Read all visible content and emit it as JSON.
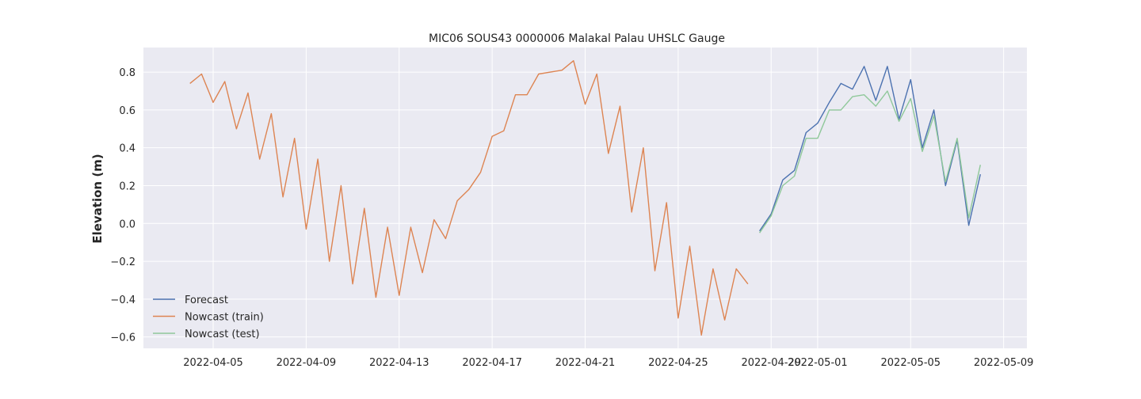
{
  "chart_data": {
    "type": "line",
    "title": "MIC06 SOUS43 0000006 Malakal Palau UHSLC Gauge",
    "xlabel": "",
    "ylabel": "Elevation (m)",
    "xlim": [
      "2022-04-02",
      "2022-05-10"
    ],
    "ylim": [
      -0.66,
      0.93
    ],
    "x_ticks": [
      "2022-04-05",
      "2022-04-09",
      "2022-04-13",
      "2022-04-17",
      "2022-04-21",
      "2022-04-25",
      "2022-04-29",
      "2022-05-01",
      "2022-05-05",
      "2022-05-09"
    ],
    "y_ticks": [
      -0.6,
      -0.4,
      -0.2,
      0.0,
      0.2,
      0.4,
      0.6,
      0.8
    ],
    "y_tick_labels": [
      "−0.6",
      "−0.4",
      "−0.2",
      "0.0",
      "0.2",
      "0.4",
      "0.6",
      "0.8"
    ],
    "grid": true,
    "background": "#eaeaf2",
    "legend_position": "lower-left",
    "series": [
      {
        "name": "Forecast",
        "color": "#4c72b0",
        "x": [
          "2022-04-28 12:00",
          "2022-04-29 00:00",
          "2022-04-29 12:00",
          "2022-04-30 00:00",
          "2022-04-30 12:00",
          "2022-05-01 00:00",
          "2022-05-01 12:00",
          "2022-05-02 00:00",
          "2022-05-02 12:00",
          "2022-05-03 00:00",
          "2022-05-03 12:00",
          "2022-05-04 00:00",
          "2022-05-04 12:00",
          "2022-05-05 00:00",
          "2022-05-05 12:00",
          "2022-05-06 00:00",
          "2022-05-06 12:00",
          "2022-05-07 00:00",
          "2022-05-07 12:00",
          "2022-05-08 00:00"
        ],
        "y": [
          -0.04,
          0.05,
          0.23,
          0.28,
          0.48,
          0.53,
          0.64,
          0.74,
          0.71,
          0.83,
          0.65,
          0.83,
          0.55,
          0.76,
          0.4,
          0.6,
          0.2,
          0.44,
          -0.01,
          0.26
        ]
      },
      {
        "name": "Nowcast (train)",
        "color": "#dd8452",
        "x": [
          "2022-04-04 00:00",
          "2022-04-04 12:00",
          "2022-04-05 00:00",
          "2022-04-05 12:00",
          "2022-04-06 00:00",
          "2022-04-06 12:00",
          "2022-04-07 00:00",
          "2022-04-07 12:00",
          "2022-04-08 00:00",
          "2022-04-08 12:00",
          "2022-04-09 00:00",
          "2022-04-09 12:00",
          "2022-04-10 00:00",
          "2022-04-10 12:00",
          "2022-04-11 00:00",
          "2022-04-11 12:00",
          "2022-04-12 00:00",
          "2022-04-12 12:00",
          "2022-04-13 00:00",
          "2022-04-13 12:00",
          "2022-04-14 00:00",
          "2022-04-14 12:00",
          "2022-04-15 00:00",
          "2022-04-15 12:00",
          "2022-04-16 00:00",
          "2022-04-16 12:00",
          "2022-04-17 00:00",
          "2022-04-17 12:00",
          "2022-04-18 00:00",
          "2022-04-18 12:00",
          "2022-04-19 00:00",
          "2022-04-19 12:00",
          "2022-04-20 00:00",
          "2022-04-20 12:00",
          "2022-04-21 00:00",
          "2022-04-21 12:00",
          "2022-04-22 00:00",
          "2022-04-22 12:00",
          "2022-04-23 00:00",
          "2022-04-23 12:00",
          "2022-04-24 00:00",
          "2022-04-24 12:00",
          "2022-04-25 00:00",
          "2022-04-25 12:00",
          "2022-04-26 00:00",
          "2022-04-26 12:00",
          "2022-04-27 00:00",
          "2022-04-27 12:00",
          "2022-04-28 00:00"
        ],
        "y": [
          0.74,
          0.79,
          0.64,
          0.75,
          0.5,
          0.69,
          0.34,
          0.58,
          0.14,
          0.45,
          -0.03,
          0.34,
          -0.2,
          0.2,
          -0.32,
          0.08,
          -0.39,
          -0.02,
          -0.38,
          -0.02,
          -0.26,
          0.02,
          -0.08,
          0.12,
          0.18,
          0.27,
          0.46,
          0.49,
          0.68,
          0.68,
          0.79,
          0.8,
          0.81,
          0.86,
          0.63,
          0.79,
          0.37,
          0.62,
          0.06,
          0.4,
          -0.25,
          0.11,
          -0.5,
          -0.12,
          -0.59,
          -0.24,
          -0.51,
          -0.24,
          -0.32
        ]
      },
      {
        "name": "Nowcast (test)",
        "color": "#8fc89a",
        "x": [
          "2022-04-28 12:00",
          "2022-04-29 00:00",
          "2022-04-29 12:00",
          "2022-04-30 00:00",
          "2022-04-30 12:00",
          "2022-05-01 00:00",
          "2022-05-01 12:00",
          "2022-05-02 00:00",
          "2022-05-02 12:00",
          "2022-05-03 00:00",
          "2022-05-03 12:00",
          "2022-05-04 00:00",
          "2022-05-04 12:00",
          "2022-05-05 00:00",
          "2022-05-05 12:00",
          "2022-05-06 00:00",
          "2022-05-06 12:00",
          "2022-05-07 00:00",
          "2022-05-07 12:00",
          "2022-05-08 00:00"
        ],
        "y": [
          -0.05,
          0.04,
          0.2,
          0.25,
          0.45,
          0.45,
          0.6,
          0.6,
          0.67,
          0.68,
          0.62,
          0.7,
          0.54,
          0.66,
          0.38,
          0.57,
          0.22,
          0.45,
          0.03,
          0.31
        ]
      }
    ]
  }
}
